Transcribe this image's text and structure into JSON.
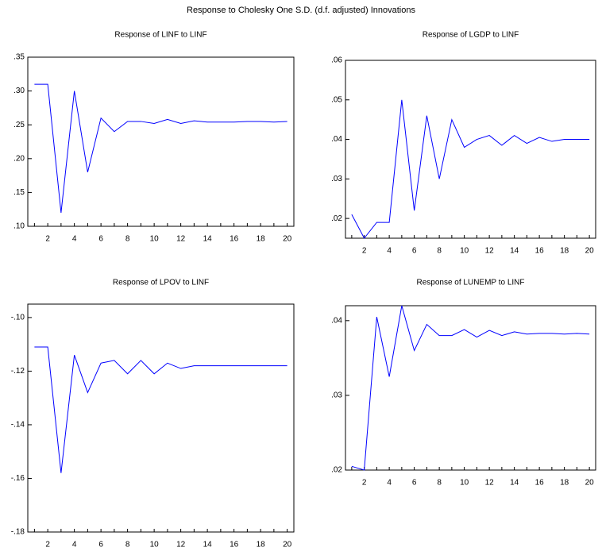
{
  "title": "Response to Cholesky One S.D. (d.f. adjusted) Innovations",
  "chart_data": [
    {
      "type": "line",
      "title": "Response of LINF to LINF",
      "x": [
        1,
        2,
        3,
        4,
        5,
        6,
        7,
        8,
        9,
        10,
        11,
        12,
        13,
        14,
        15,
        16,
        17,
        18,
        19,
        20
      ],
      "xlim": [
        0.5,
        20.5
      ],
      "xticks": [
        2,
        4,
        6,
        8,
        10,
        12,
        14,
        16,
        18,
        20
      ],
      "ylim": [
        0.1,
        0.35
      ],
      "yticks": [
        {
          "value": 0.35,
          "label": ".35"
        },
        {
          "value": 0.3,
          "label": ".30"
        },
        {
          "value": 0.25,
          "label": ".25"
        },
        {
          "value": 0.2,
          "label": ".20"
        },
        {
          "value": 0.15,
          "label": ".15"
        },
        {
          "value": 0.1,
          "label": ".10"
        }
      ],
      "series": [
        {
          "color": "#0000ff",
          "values": [
            0.31,
            0.31,
            0.12,
            0.3,
            0.18,
            0.26,
            0.24,
            0.255,
            0.255,
            0.252,
            0.258,
            0.252,
            0.256,
            0.254,
            0.254,
            0.254,
            0.255,
            0.255,
            0.254,
            0.255
          ]
        }
      ]
    },
    {
      "type": "line",
      "title": "Response of LGDP to LINF",
      "x": [
        1,
        2,
        3,
        4,
        5,
        6,
        7,
        8,
        9,
        10,
        11,
        12,
        13,
        14,
        15,
        16,
        17,
        18,
        19,
        20
      ],
      "xlim": [
        0.5,
        20.5
      ],
      "xticks": [
        2,
        4,
        6,
        8,
        10,
        12,
        14,
        16,
        18,
        20
      ],
      "ylim": [
        0.015,
        0.06
      ],
      "yticks": [
        {
          "value": 0.06,
          "label": ".06"
        },
        {
          "value": 0.05,
          "label": ".05"
        },
        {
          "value": 0.04,
          "label": ".04"
        },
        {
          "value": 0.03,
          "label": ".03"
        },
        {
          "value": 0.02,
          "label": ".02"
        }
      ],
      "series": [
        {
          "color": "#0000ff",
          "values": [
            0.021,
            0.015,
            0.019,
            0.019,
            0.05,
            0.022,
            0.046,
            0.03,
            0.045,
            0.038,
            0.04,
            0.041,
            0.0385,
            0.041,
            0.039,
            0.0405,
            0.0395,
            0.04,
            0.04,
            0.04
          ]
        }
      ]
    },
    {
      "type": "line",
      "title": "Response of LPOV to LINF",
      "x": [
        1,
        2,
        3,
        4,
        5,
        6,
        7,
        8,
        9,
        10,
        11,
        12,
        13,
        14,
        15,
        16,
        17,
        18,
        19,
        20
      ],
      "xlim": [
        0.5,
        20.5
      ],
      "xticks": [
        2,
        4,
        6,
        8,
        10,
        12,
        14,
        16,
        18,
        20
      ],
      "ylim": [
        -0.18,
        -0.095
      ],
      "yticks": [
        {
          "value": -0.1,
          "label": "-.10"
        },
        {
          "value": -0.12,
          "label": "-.12"
        },
        {
          "value": -0.14,
          "label": "-.14"
        },
        {
          "value": -0.16,
          "label": "-.16"
        },
        {
          "value": -0.18,
          "label": "-.18"
        }
      ],
      "series": [
        {
          "color": "#0000ff",
          "values": [
            -0.111,
            -0.111,
            -0.158,
            -0.114,
            -0.128,
            -0.117,
            -0.116,
            -0.121,
            -0.116,
            -0.121,
            -0.117,
            -0.119,
            -0.118,
            -0.118,
            -0.118,
            -0.118,
            -0.118,
            -0.118,
            -0.118,
            -0.118
          ]
        }
      ]
    },
    {
      "type": "line",
      "title": "Response of LUNEMP to LINF",
      "x": [
        1,
        2,
        3,
        4,
        5,
        6,
        7,
        8,
        9,
        10,
        11,
        12,
        13,
        14,
        15,
        16,
        17,
        18,
        19,
        20
      ],
      "xlim": [
        0.5,
        20.5
      ],
      "xticks": [
        2,
        4,
        6,
        8,
        10,
        12,
        14,
        16,
        18,
        20
      ],
      "ylim": [
        0.02,
        0.042
      ],
      "yticks": [
        {
          "value": 0.04,
          "label": ".04"
        },
        {
          "value": 0.03,
          "label": ".03"
        },
        {
          "value": 0.02,
          "label": ".02"
        }
      ],
      "series": [
        {
          "color": "#0000ff",
          "values": [
            0.0205,
            0.02,
            0.0405,
            0.0325,
            0.042,
            0.036,
            0.0395,
            0.038,
            0.038,
            0.0388,
            0.0378,
            0.0387,
            0.038,
            0.0385,
            0.0382,
            0.0383,
            0.0383,
            0.0382,
            0.0383,
            0.0382
          ]
        }
      ]
    }
  ]
}
